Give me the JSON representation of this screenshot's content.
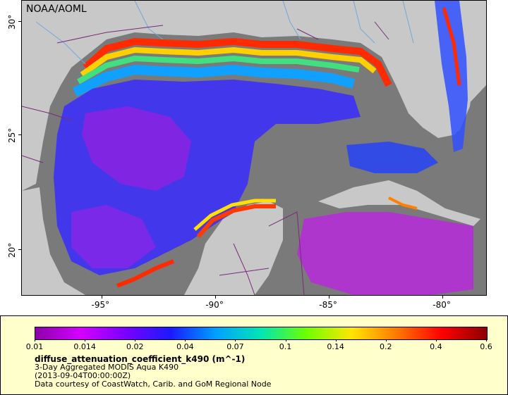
{
  "map": {
    "credit": "NOAA/AOML",
    "x_ticks": [
      {
        "label": "-95°",
        "frac": 0.172
      },
      {
        "label": "-90°",
        "frac": 0.417
      },
      {
        "label": "-85°",
        "frac": 0.661
      },
      {
        "label": "-80°",
        "frac": 0.905
      }
    ],
    "y_ticks": [
      {
        "label": "30°",
        "frac": 0.072
      },
      {
        "label": "25°",
        "frac": 0.455
      },
      {
        "label": "20°",
        "frac": 0.843
      }
    ],
    "colors": {
      "land": "#c8c8c8",
      "nodata": "#7a7a7a",
      "border": "#7a2a7a",
      "river": "#6fa8dc"
    }
  },
  "legend": {
    "tick_labels": [
      "0.01",
      "0.014",
      "0.02",
      "0.04",
      "0.07",
      "0.1",
      "0.14",
      "0.2",
      "0.4",
      "0.6"
    ],
    "gradient": [
      "#8b00a8",
      "#d400ff",
      "#7a00ff",
      "#1a1aff",
      "#00a0ff",
      "#00e6b4",
      "#6cff00",
      "#ffe600",
      "#ff7a00",
      "#ff0000",
      "#8b0000"
    ],
    "variable": "diffuse_attenuation_coefficient_k490 (m^-1)",
    "line1": "3-Day Aggregated MODIS Aqua K490",
    "line2": "(2013-09-04T00:00:00Z)",
    "line3": "Data courtesy of CoastWatch, Carib. and GoM Regional Node"
  }
}
